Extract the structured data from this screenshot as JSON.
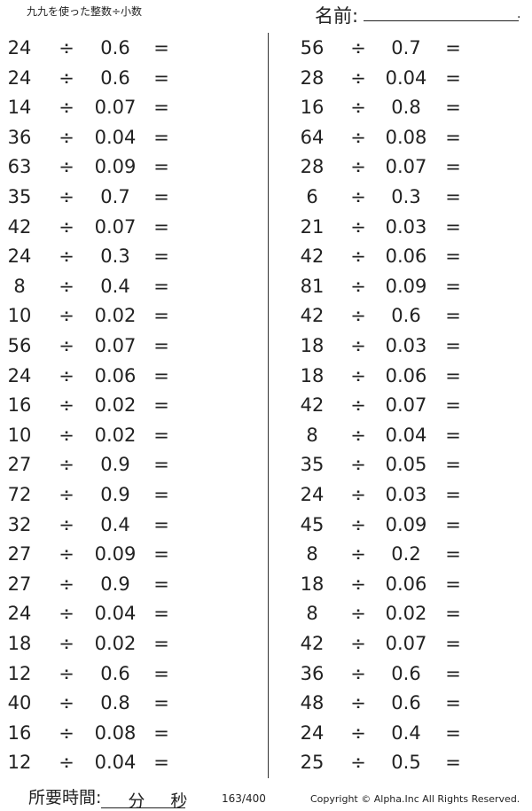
{
  "header": {
    "title": "九九を使った整数÷小数",
    "name_label": "名前:",
    "name_end": "."
  },
  "operator": "÷",
  "equals": "=",
  "left": [
    [
      "24",
      "0.6"
    ],
    [
      "24",
      "0.6"
    ],
    [
      "14",
      "0.07"
    ],
    [
      "36",
      "0.04"
    ],
    [
      "63",
      "0.09"
    ],
    [
      "35",
      "0.7"
    ],
    [
      "42",
      "0.07"
    ],
    [
      "24",
      "0.3"
    ],
    [
      "8",
      "0.4"
    ],
    [
      "10",
      "0.02"
    ],
    [
      "56",
      "0.07"
    ],
    [
      "24",
      "0.06"
    ],
    [
      "16",
      "0.02"
    ],
    [
      "10",
      "0.02"
    ],
    [
      "27",
      "0.9"
    ],
    [
      "72",
      "0.9"
    ],
    [
      "32",
      "0.4"
    ],
    [
      "27",
      "0.09"
    ],
    [
      "27",
      "0.9"
    ],
    [
      "24",
      "0.04"
    ],
    [
      "18",
      "0.02"
    ],
    [
      "12",
      "0.6"
    ],
    [
      "40",
      "0.8"
    ],
    [
      "16",
      "0.08"
    ],
    [
      "12",
      "0.04"
    ]
  ],
  "right": [
    [
      "56",
      "0.7"
    ],
    [
      "28",
      "0.04"
    ],
    [
      "16",
      "0.8"
    ],
    [
      "64",
      "0.08"
    ],
    [
      "28",
      "0.07"
    ],
    [
      "6",
      "0.3"
    ],
    [
      "21",
      "0.03"
    ],
    [
      "42",
      "0.06"
    ],
    [
      "81",
      "0.09"
    ],
    [
      "42",
      "0.6"
    ],
    [
      "18",
      "0.03"
    ],
    [
      "18",
      "0.06"
    ],
    [
      "42",
      "0.07"
    ],
    [
      "8",
      "0.04"
    ],
    [
      "35",
      "0.05"
    ],
    [
      "24",
      "0.03"
    ],
    [
      "45",
      "0.09"
    ],
    [
      "8",
      "0.2"
    ],
    [
      "18",
      "0.06"
    ],
    [
      "8",
      "0.02"
    ],
    [
      "42",
      "0.07"
    ],
    [
      "36",
      "0.6"
    ],
    [
      "48",
      "0.6"
    ],
    [
      "24",
      "0.4"
    ],
    [
      "25",
      "0.5"
    ]
  ],
  "footer": {
    "time_label": "所要時間:",
    "minutes": "分",
    "seconds": "秒",
    "page": "163/400",
    "copyright": "Copyright © Alpha.Inc All Rights Reserved."
  }
}
